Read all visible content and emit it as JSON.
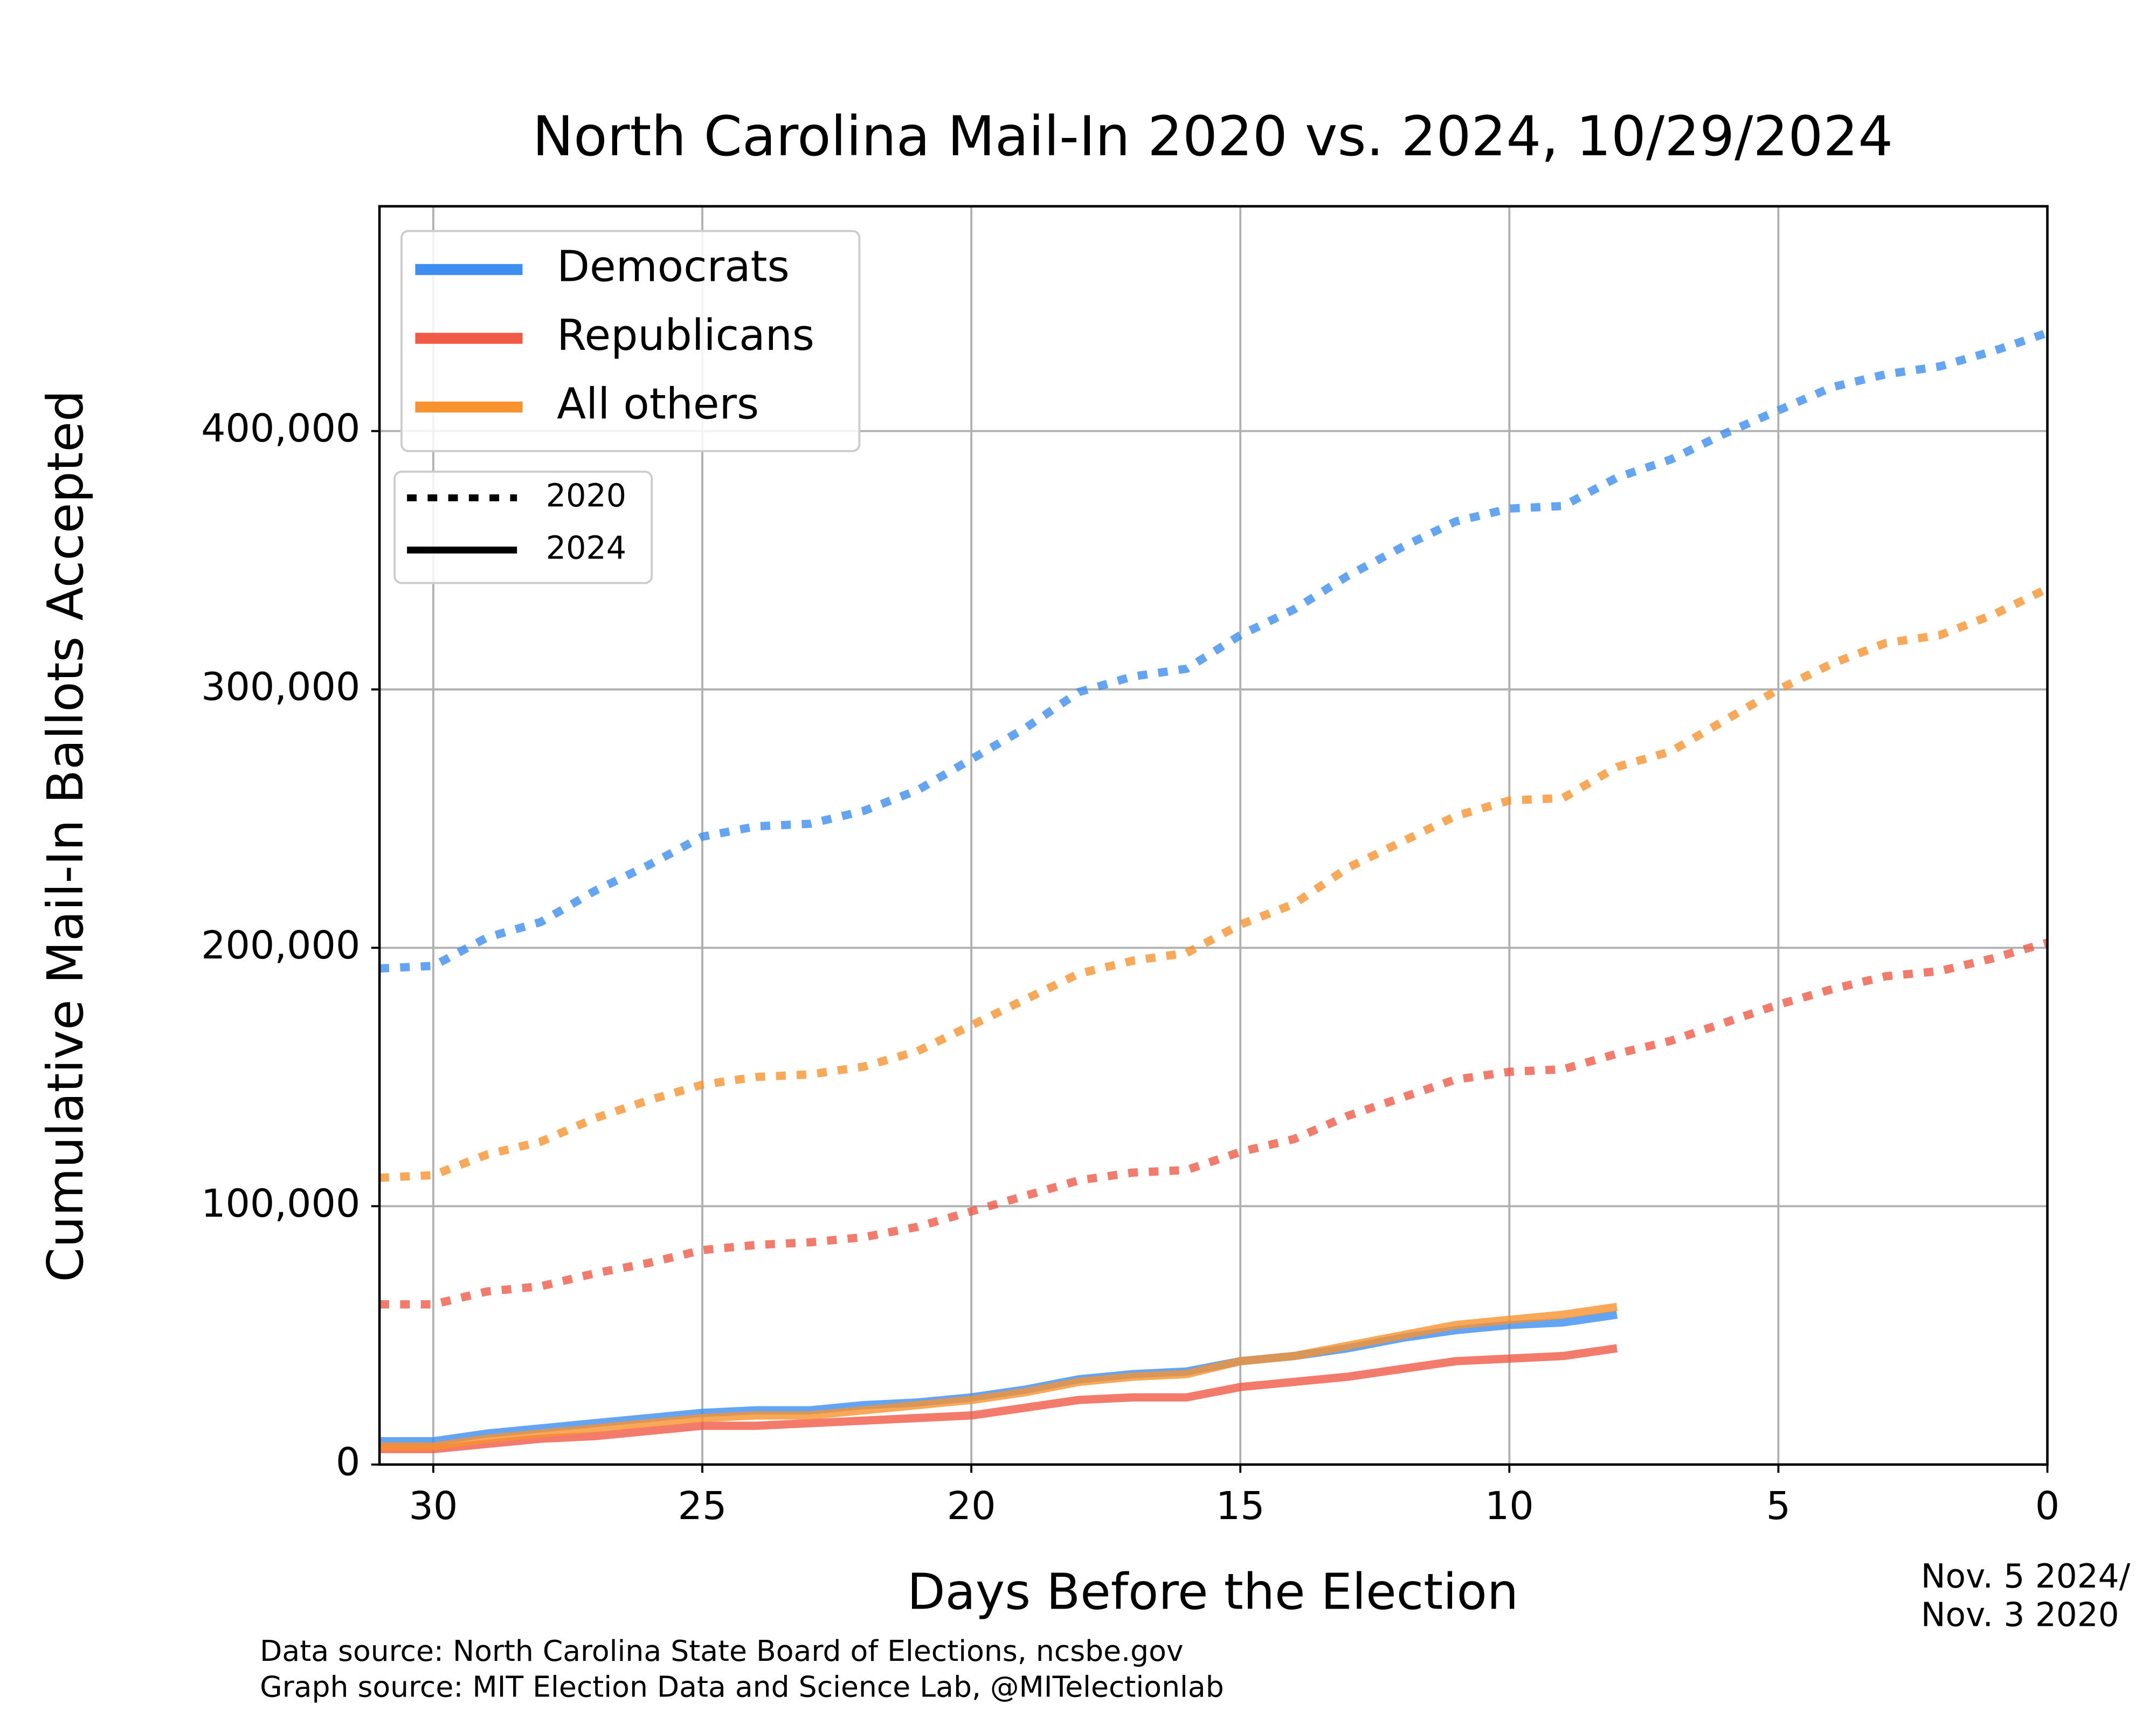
{
  "chart_data": {
    "type": "line",
    "title": "North Carolina Mail-In 2020 vs. 2024, 10/29/2024",
    "xlabel": "Days Before the Election",
    "ylabel": "Cumulative Mail-In Ballots Accepted",
    "annotation": [
      "Nov. 5 2024/",
      "Nov. 3 2020"
    ],
    "sources": [
      "Data source: North Carolina State Board of Elections, ncsbe.gov",
      "Graph source: MIT Election Data and Science Lab, @MITelectionlab"
    ],
    "x": [
      31,
      30,
      29,
      28,
      27,
      26,
      25,
      24,
      23,
      22,
      21,
      20,
      19,
      18,
      17,
      16,
      15,
      14,
      13,
      12,
      11,
      10,
      9,
      8,
      7,
      6,
      5,
      4,
      3,
      2,
      1,
      0
    ],
    "xlim": [
      31,
      0
    ],
    "xticks": [
      30,
      25,
      20,
      15,
      10,
      5,
      0
    ],
    "ylim": [
      0,
      487000
    ],
    "yticks": [
      0,
      {
        "value": 100000,
        "label": "100,000"
      },
      {
        "value": 200000,
        "label": "200,000"
      },
      {
        "value": 300000,
        "label": "300,000"
      },
      {
        "value": 400000,
        "label": "400,000"
      }
    ],
    "grid": true,
    "legend": "upper left",
    "line_styles": [
      {
        "label": "2020",
        "dashed": true
      },
      {
        "label": "2024",
        "dashed": false
      }
    ],
    "series": [
      {
        "name": "Democrats",
        "color": "#3d8ef0",
        "values": [
          [
            192000,
            193000,
            204000,
            210000,
            222000,
            232000,
            243000,
            247000,
            248000,
            253000,
            261000,
            273000,
            285000,
            299000,
            305000,
            308000,
            321000,
            331000,
            344000,
            355000,
            365000,
            370000,
            371000,
            382000,
            389000,
            399000,
            408000,
            417000,
            422000,
            425000,
            431000,
            438000
          ],
          [
            9000,
            9000,
            12000,
            14000,
            16000,
            18000,
            20000,
            21000,
            21000,
            23000,
            24000,
            26000,
            29000,
            33000,
            35000,
            36000,
            40000,
            42000,
            45000,
            49000,
            52000,
            54000,
            55000,
            58000,
            null,
            null,
            null,
            null,
            null,
            null,
            null,
            null
          ]
        ]
      },
      {
        "name": "Republicans",
        "color": "#f05a46",
        "values": [
          [
            62000,
            62000,
            67000,
            69000,
            74000,
            78000,
            83000,
            85000,
            86000,
            88000,
            92000,
            98000,
            104000,
            110000,
            113000,
            114000,
            121000,
            126000,
            135000,
            142000,
            149000,
            152000,
            153000,
            159000,
            164000,
            171000,
            178000,
            184000,
            189000,
            191000,
            196000,
            202000
          ],
          [
            6000,
            6000,
            8000,
            10000,
            11000,
            13000,
            15000,
            15000,
            16000,
            17000,
            18000,
            19000,
            22000,
            25000,
            26000,
            26000,
            30000,
            32000,
            34000,
            37000,
            40000,
            41000,
            42000,
            45000,
            null,
            null,
            null,
            null,
            null,
            null,
            null,
            null
          ]
        ]
      },
      {
        "name": "All others",
        "color": "#f7922e",
        "values": [
          [
            111000,
            112000,
            120000,
            125000,
            134000,
            141000,
            147000,
            150000,
            151000,
            154000,
            160000,
            170000,
            180000,
            190000,
            195000,
            198000,
            209000,
            217000,
            231000,
            241000,
            251000,
            257000,
            258000,
            270000,
            276000,
            288000,
            300000,
            310000,
            318000,
            321000,
            329000,
            339000
          ],
          [
            7000,
            7000,
            10000,
            12000,
            14000,
            16000,
            18000,
            19000,
            19000,
            21000,
            23000,
            25000,
            28000,
            32000,
            34000,
            35000,
            40000,
            42000,
            46000,
            50000,
            54000,
            56000,
            58000,
            61000,
            null,
            null,
            null,
            null,
            null,
            null,
            null,
            null
          ]
        ]
      }
    ]
  }
}
